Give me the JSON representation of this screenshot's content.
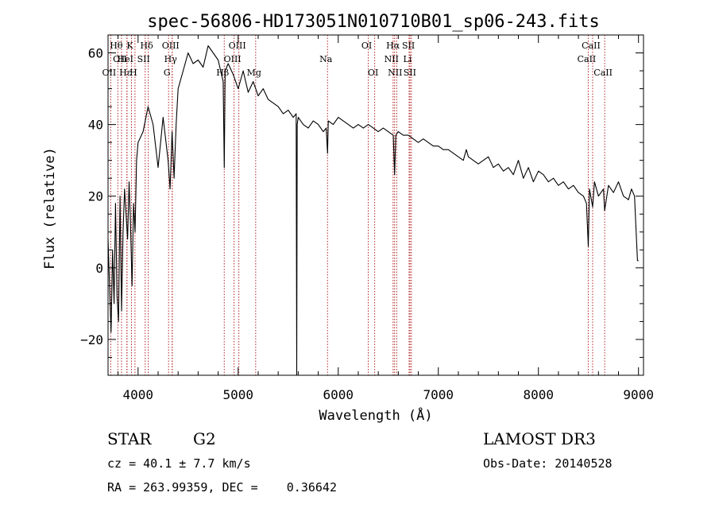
{
  "chart_data": {
    "type": "line",
    "title": "spec-56806-HD173051N010710B01_sp06-243.fits",
    "xlabel": "Wavelength (Å)",
    "ylabel": "Flux (relative)",
    "xlim": [
      3700,
      9050
    ],
    "ylim": [
      -30,
      65
    ],
    "xticks": [
      4000,
      5000,
      6000,
      7000,
      8000,
      9000
    ],
    "yticks": [
      -20,
      0,
      20,
      40,
      60
    ],
    "x_minor_step": 200,
    "y_minor_step": 5,
    "grid": false,
    "line_color": "#000000",
    "marker_color": "#b22222",
    "series": [
      {
        "x": [
          3700,
          3715,
          3730,
          3745,
          3760,
          3775,
          3790,
          3805,
          3820,
          3835,
          3850,
          3865,
          3880,
          3895,
          3910,
          3925,
          3940,
          3955,
          3970,
          3985,
          4000,
          4050,
          4100,
          4150,
          4200,
          4250,
          4300,
          4320,
          4340,
          4360,
          4380,
          4400,
          4450,
          4500,
          4550,
          4600,
          4650,
          4700,
          4750,
          4800,
          4850,
          4861,
          4870,
          4900,
          4950,
          5000,
          5050,
          5100,
          5150,
          5200,
          5250,
          5300,
          5350,
          5400,
          5450,
          5500,
          5550,
          5580,
          5585,
          5590,
          5600,
          5650,
          5700,
          5750,
          5800,
          5850,
          5880,
          5893,
          5900,
          5950,
          6000,
          6050,
          6100,
          6150,
          6200,
          6250,
          6300,
          6350,
          6400,
          6450,
          6500,
          6550,
          6563,
          6575,
          6600,
          6650,
          6700,
          6750,
          6800,
          6850,
          6900,
          6950,
          7000,
          7050,
          7100,
          7150,
          7200,
          7250,
          7280,
          7300,
          7350,
          7400,
          7450,
          7500,
          7550,
          7600,
          7650,
          7700,
          7750,
          7800,
          7850,
          7900,
          7950,
          8000,
          8050,
          8100,
          8150,
          8200,
          8250,
          8300,
          8350,
          8400,
          8450,
          8480,
          8498,
          8510,
          8542,
          8560,
          8600,
          8650,
          8662,
          8700,
          8750,
          8800,
          8850,
          8900,
          8930,
          8960,
          8990,
          9000
        ],
        "y": [
          8,
          -5,
          -18,
          5,
          -10,
          18,
          -8,
          -15,
          20,
          -12,
          10,
          22,
          15,
          8,
          24,
          12,
          -5,
          18,
          10,
          30,
          35,
          38,
          45,
          40,
          28,
          42,
          30,
          22,
          38,
          25,
          40,
          50,
          55,
          60,
          57,
          58,
          56,
          62,
          60,
          58,
          52,
          28,
          55,
          57,
          54,
          50,
          55,
          49,
          52,
          48,
          50,
          47,
          46,
          45,
          43,
          44,
          42,
          43,
          -30,
          40,
          42,
          40,
          39,
          41,
          40,
          38,
          39,
          32,
          41,
          40,
          42,
          41,
          40,
          39,
          40,
          39,
          40,
          39,
          38,
          39,
          38,
          37,
          26,
          37,
          38,
          37,
          37,
          36,
          35,
          36,
          35,
          34,
          34,
          33,
          33,
          32,
          31,
          30,
          33,
          31,
          30,
          29,
          30,
          31,
          28,
          29,
          27,
          28,
          26,
          30,
          25,
          28,
          24,
          27,
          26,
          24,
          25,
          23,
          24,
          22,
          23,
          21,
          20,
          18,
          6,
          22,
          17,
          24,
          20,
          22,
          16,
          23,
          21,
          24,
          20,
          19,
          22,
          20,
          2,
          2
        ]
      }
    ],
    "line_markers": [
      {
        "wavelength": 3798,
        "label": "Hθ",
        "row": 0
      },
      {
        "wavelength": 3835,
        "label": "OII",
        "row": 1
      },
      {
        "wavelength": 3727,
        "label": "OII",
        "row": 2
      },
      {
        "wavelength": 3889,
        "label": "Hε",
        "row": 2
      },
      {
        "wavelength": 3934,
        "label": "K",
        "row": 0
      },
      {
        "wavelength": 3889,
        "label": "HeI",
        "row": 1
      },
      {
        "wavelength": 3969,
        "label": "H",
        "row": 2
      },
      {
        "wavelength": 4071,
        "label": "SII",
        "row": 1
      },
      {
        "wavelength": 4102,
        "label": "Hδ",
        "row": 0
      },
      {
        "wavelength": 4341,
        "label": "OIII",
        "row": 0
      },
      {
        "wavelength": 4341,
        "label": "Hγ",
        "row": 1
      },
      {
        "wavelength": 4305,
        "label": "G",
        "row": 2
      },
      {
        "wavelength": 4861,
        "label": "Hβ",
        "row": 2
      },
      {
        "wavelength": 5007,
        "label": "OIII",
        "row": 0
      },
      {
        "wavelength": 4959,
        "label": "OIII",
        "row": 1
      },
      {
        "wavelength": 5175,
        "label": "Mg",
        "row": 2
      },
      {
        "wavelength": 5893,
        "label": "Na",
        "row": 1
      },
      {
        "wavelength": 6300,
        "label": "OI",
        "row": 0
      },
      {
        "wavelength": 6364,
        "label": "OI",
        "row": 2
      },
      {
        "wavelength": 6563,
        "label": "Hα",
        "row": 0
      },
      {
        "wavelength": 6548,
        "label": "NII",
        "row": 1
      },
      {
        "wavelength": 6584,
        "label": "NII",
        "row": 2
      },
      {
        "wavelength": 6717,
        "label": "SII",
        "row": 0
      },
      {
        "wavelength": 6708,
        "label": "Li",
        "row": 1
      },
      {
        "wavelength": 6731,
        "label": "SII",
        "row": 2
      },
      {
        "wavelength": 8542,
        "label": "CaII",
        "row": 0
      },
      {
        "wavelength": 8498,
        "label": "CaII",
        "row": 1
      },
      {
        "wavelength": 8662,
        "label": "CaII",
        "row": 2
      }
    ]
  },
  "info": {
    "object_class": "STAR",
    "subclass": "G2",
    "redshift": "cz = 40.1 ± 7.7 km/s",
    "coords": "RA = 263.99359, DEC =    0.36642",
    "survey": "LAMOST DR3",
    "obs_date": "Obs-Date: 20140528"
  }
}
